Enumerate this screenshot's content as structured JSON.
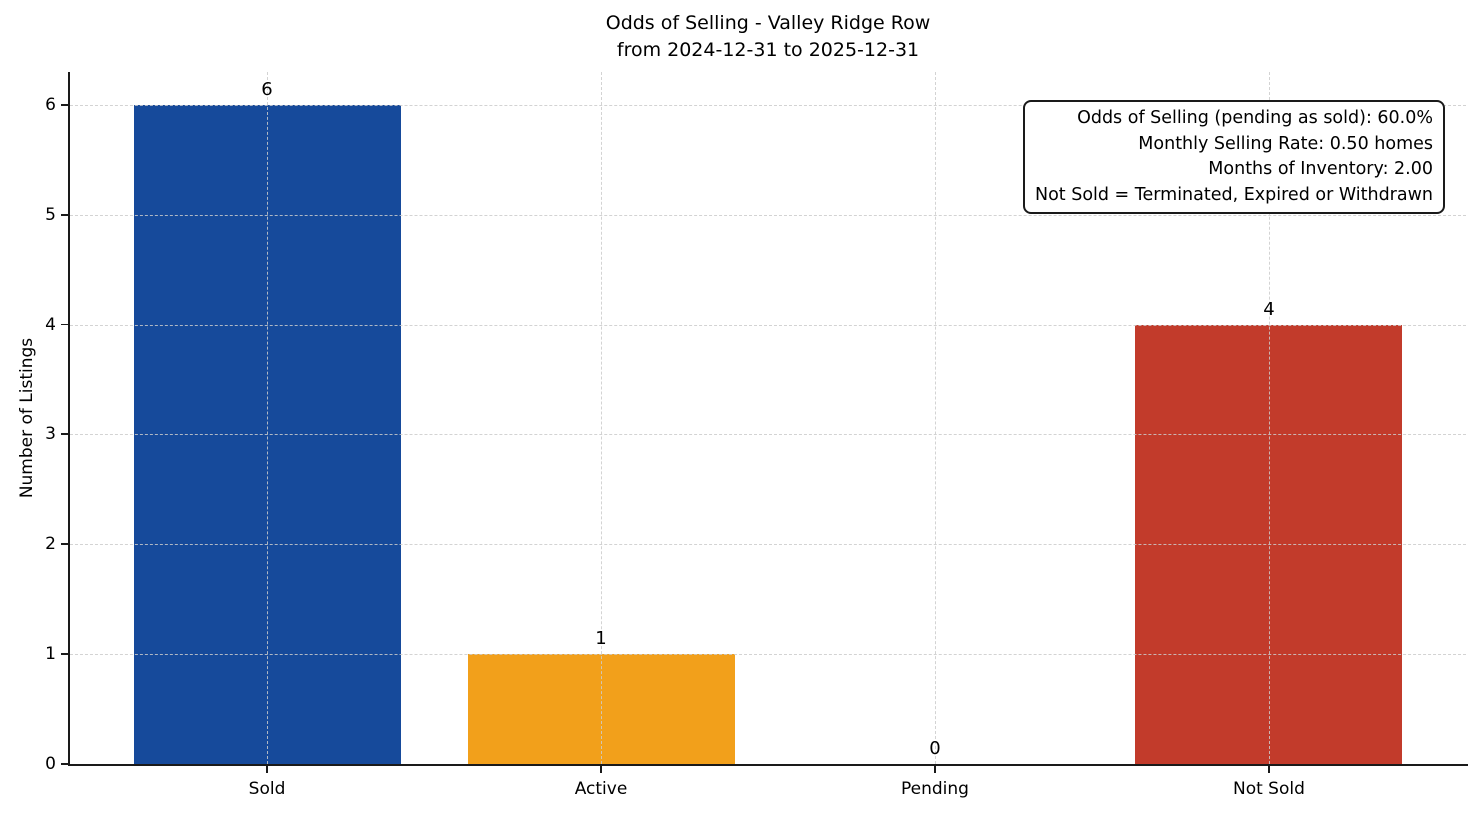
{
  "chart_data": {
    "type": "bar",
    "title": "Odds of Selling - Valley Ridge Row",
    "subtitle": "from 2024-12-31 to 2025-12-31",
    "categories": [
      "Sold",
      "Active",
      "Pending",
      "Not Sold"
    ],
    "values": [
      6,
      1,
      0,
      4
    ],
    "value_labels": [
      "6",
      "1",
      "0",
      "4"
    ],
    "bar_colors": [
      "#164a9b",
      "#f2a01b",
      null,
      "#c23b2b"
    ],
    "xlabel": "",
    "ylabel": "Number of Listings",
    "ylim": [
      0,
      6.3
    ],
    "yticks": [
      "0",
      "1",
      "2",
      "3",
      "4",
      "5",
      "6"
    ],
    "grid": "dashed, both axes",
    "legend": "none",
    "annotation_box": {
      "position": "top-right",
      "lines": [
        "Odds of Selling (pending as sold): 60.0%",
        "Monthly Selling Rate: 0.50 homes",
        "Months of Inventory: 2.00",
        "Not Sold = Terminated, Expired or Withdrawn"
      ]
    },
    "colors": {
      "axis": "#1a1a1a",
      "grid": "#cbcbcb",
      "text": "#000000",
      "background": "#ffffff"
    }
  }
}
